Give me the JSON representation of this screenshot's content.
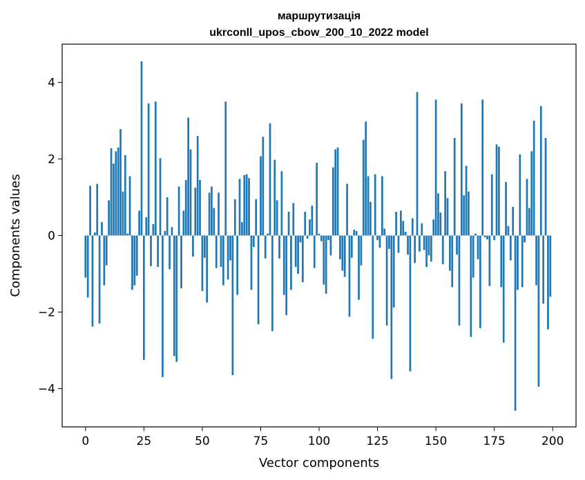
{
  "chart_data": {
    "type": "bar",
    "title_line1": "маршрутизація",
    "title_line2": "ukrconll_upos_cbow_200_10_2022 model",
    "xlabel": "Vector components",
    "ylabel": "Components values",
    "xlim": [
      -10,
      210
    ],
    "ylim": [
      -5.0,
      5.0
    ],
    "xticks": [
      0,
      25,
      50,
      75,
      100,
      125,
      150,
      175,
      200
    ],
    "yticks": [
      -4,
      -2,
      0,
      2,
      4
    ],
    "ytick_labels": [
      "−4",
      "−2",
      "0",
      "2",
      "4"
    ],
    "grid": false,
    "bar_color": "#1f77b4",
    "values": [
      -1.1,
      -1.62,
      1.3,
      -2.38,
      0.08,
      1.35,
      -2.3,
      0.35,
      -1.3,
      -0.78,
      0.92,
      2.28,
      1.88,
      2.2,
      2.3,
      2.78,
      1.15,
      2.1,
      0.05,
      1.55,
      -1.42,
      -1.3,
      -1.05,
      0.65,
      4.55,
      -3.25,
      0.48,
      3.45,
      -0.8,
      0.3,
      3.5,
      -0.82,
      2.02,
      -3.7,
      0.12,
      1.0,
      -0.88,
      0.22,
      -3.15,
      -3.3,
      1.28,
      -1.38,
      0.65,
      1.45,
      3.08,
      2.25,
      -0.55,
      1.25,
      2.6,
      1.45,
      -1.45,
      -0.58,
      -1.75,
      1.12,
      1.28,
      0.72,
      -0.85,
      1.12,
      -0.82,
      -1.3,
      3.5,
      -1.15,
      -0.65,
      -3.65,
      0.95,
      -1.55,
      1.48,
      0.35,
      1.58,
      1.6,
      1.5,
      -1.42,
      -0.3,
      0.95,
      -2.32,
      2.07,
      2.58,
      -0.6,
      0.05,
      2.93,
      -2.5,
      1.98,
      0.92,
      -0.6,
      1.68,
      -1.55,
      -2.08,
      0.62,
      -1.42,
      0.85,
      -0.82,
      -1.0,
      -0.18,
      -1.22,
      0.62,
      -0.08,
      0.42,
      0.78,
      -0.85,
      1.9,
      0.05,
      -0.15,
      -1.28,
      -1.52,
      -0.12,
      -0.52,
      1.78,
      2.25,
      2.3,
      -0.62,
      -0.92,
      -1.08,
      1.35,
      -2.12,
      -0.58,
      0.15,
      0.12,
      -1.68,
      -0.78,
      2.5,
      2.98,
      1.55,
      0.88,
      -2.7,
      1.6,
      -0.12,
      -0.32,
      1.55,
      0.18,
      -2.35,
      -0.35,
      -3.75,
      -1.88,
      0.62,
      -0.45,
      0.65,
      0.38,
      0.1,
      -0.5,
      -3.55,
      0.45,
      -0.72,
      3.75,
      -0.42,
      0.32,
      -0.38,
      -0.82,
      -0.52,
      -0.68,
      0.42,
      3.55,
      1.1,
      0.6,
      -0.75,
      1.68,
      0.98,
      -0.92,
      -1.35,
      2.55,
      -0.5,
      -2.35,
      3.45,
      1.05,
      1.82,
      1.15,
      -2.65,
      -1.1,
      0.05,
      -0.62,
      -2.42,
      3.55,
      -0.05,
      -0.1,
      -1.32,
      1.6,
      -0.12,
      2.38,
      2.32,
      -1.35,
      -2.8,
      1.4,
      0.25,
      -0.65,
      0.75,
      -4.58,
      -1.42,
      2.12,
      -1.35,
      -0.18,
      1.48,
      0.72,
      2.2,
      3.0,
      -1.3,
      -3.95,
      3.38,
      -1.78,
      2.55,
      -2.45,
      -1.6
    ]
  }
}
